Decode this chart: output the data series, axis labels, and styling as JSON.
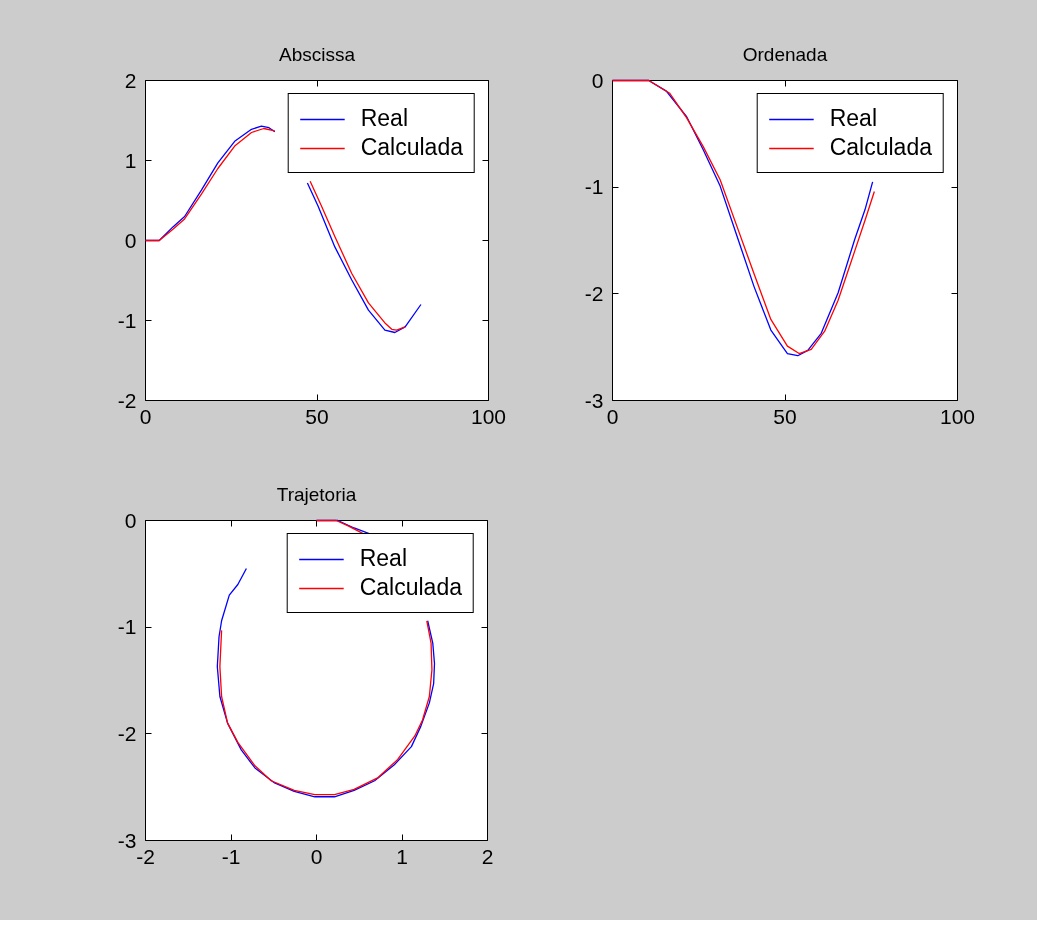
{
  "chart_data": [
    {
      "type": "line",
      "title": "Abscissa",
      "xlim": [
        0,
        100
      ],
      "ylim": [
        -2,
        2
      ],
      "xticks": [
        0,
        50,
        100
      ],
      "yticks": [
        -2,
        -1,
        0,
        1,
        2
      ],
      "grid": false,
      "legend": "top right",
      "series": [
        {
          "name": "Real",
          "color": "#0000ff",
          "x": [
            0,
            4,
            8,
            11.4,
            16.3,
            21.1,
            26,
            30.9,
            33.8,
            36,
            37.7,
            42,
            47.2,
            50.3,
            55.2,
            60.1,
            65,
            69.8,
            72.7,
            75.7,
            80.3
          ],
          "values": [
            0,
            0,
            0.17,
            0.3,
            0.63,
            0.97,
            1.24,
            1.39,
            1.43,
            1.41,
            1.36,
            null,
            0.72,
            0.43,
            -0.08,
            -0.49,
            -0.87,
            -1.12,
            -1.15,
            -1.08,
            -0.8
          ]
        },
        {
          "name": "Calculada",
          "color": "#ff0000",
          "x": [
            0,
            4,
            8,
            11.4,
            16.3,
            21.1,
            26,
            30.9,
            34.5,
            37.7,
            42,
            48,
            51.3,
            55.2,
            60.1,
            65,
            69.8,
            71.8,
            73.2,
            75.7
          ],
          "values": [
            0,
            0,
            0.14,
            0.27,
            0.58,
            0.9,
            1.18,
            1.35,
            1.4,
            1.37,
            null,
            0.74,
            0.43,
            0.05,
            -0.41,
            -0.78,
            -1.03,
            -1.11,
            -1.12,
            -1.08
          ]
        }
      ]
    },
    {
      "type": "line",
      "title": "Ordenada",
      "xlim": [
        0,
        100
      ],
      "ylim": [
        -3,
        0
      ],
      "xticks": [
        0,
        50,
        100
      ],
      "yticks": [
        -3,
        -2,
        -1,
        0
      ],
      "grid": false,
      "legend": "top right",
      "series": [
        {
          "name": "Real",
          "color": "#0000ff",
          "x": [
            0,
            10.5,
            15.6,
            21.5,
            26.3,
            31.2,
            36.1,
            41,
            45.9,
            50.7,
            53.7,
            56.6,
            60.5,
            65.4,
            70.2,
            73.2,
            75.4
          ],
          "values": [
            0,
            0,
            -0.1,
            -0.34,
            -0.65,
            -0.99,
            -1.46,
            -1.93,
            -2.34,
            -2.56,
            -2.58,
            -2.53,
            -2.37,
            -1.99,
            -1.49,
            -1.21,
            -0.95
          ]
        },
        {
          "name": "Calculada",
          "color": "#ff0000",
          "x": [
            0,
            10.5,
            16.6,
            21.5,
            26.3,
            31.2,
            36.1,
            41,
            45.9,
            50.7,
            54.1,
            57.6,
            61.5,
            65.4,
            70.2,
            73.2,
            75.9
          ],
          "values": [
            0,
            0,
            -0.12,
            -0.35,
            -0.62,
            -0.93,
            -1.37,
            -1.81,
            -2.24,
            -2.49,
            -2.56,
            -2.52,
            -2.35,
            -2.06,
            -1.6,
            -1.31,
            -1.04
          ]
        }
      ]
    },
    {
      "type": "line",
      "title": "Trajetoria",
      "xlim": [
        -2,
        2
      ],
      "ylim": [
        -3,
        0
      ],
      "xticks": [
        -2,
        -1,
        0,
        1,
        2
      ],
      "yticks": [
        -3,
        -2,
        -1,
        0
      ],
      "grid": false,
      "legend": "top right",
      "series": [
        {
          "name": "Real",
          "color": "#0000ff",
          "x": [
            0,
            0.25,
            0.44,
            0.64,
            1.0,
            1.3,
            1.36,
            1.38,
            1.37,
            1.32,
            1.22,
            1.11,
            0.91,
            0.68,
            0.44,
            0.21,
            -0.02,
            -0.26,
            -0.49,
            -0.72,
            -0.88,
            -1.04,
            -1.13,
            -1.16,
            -1.14,
            -1.11,
            -1.02,
            -0.92,
            -0.82
          ],
          "values": [
            0,
            0,
            -0.07,
            -0.13,
            null,
            -0.94,
            -1.15,
            -1.34,
            -1.53,
            -1.71,
            -1.93,
            -2.12,
            -2.29,
            -2.44,
            -2.53,
            -2.59,
            -2.59,
            -2.54,
            -2.46,
            -2.32,
            -2.15,
            -1.9,
            -1.65,
            -1.37,
            -1.09,
            -0.94,
            -0.7,
            -0.6,
            -0.45
          ]
        },
        {
          "name": "Calculada",
          "color": "#ff0000",
          "x": [
            0,
            0.23,
            0.37,
            0.54,
            1.0,
            1.29,
            1.34,
            1.35,
            1.32,
            1.24,
            1.15,
            0.95,
            0.72,
            0.44,
            0.21,
            -0.02,
            -0.26,
            -0.53,
            -0.72,
            -0.92,
            -1.04,
            -1.11,
            -1.13,
            -1.11
          ],
          "values": [
            0,
            0,
            -0.05,
            -0.12,
            null,
            -0.94,
            -1.15,
            -1.4,
            -1.65,
            -1.87,
            -2.02,
            -2.24,
            -2.41,
            -2.52,
            -2.57,
            -2.57,
            -2.53,
            -2.44,
            -2.3,
            -2.08,
            -1.9,
            -1.65,
            -1.37,
            -1.03
          ]
        }
      ]
    }
  ]
}
